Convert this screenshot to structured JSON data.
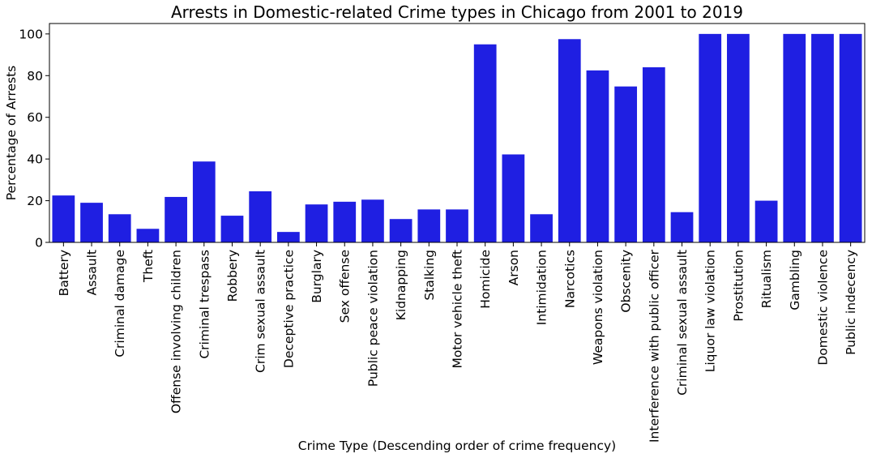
{
  "chart_data": {
    "type": "bar",
    "title": "Arrests in Domestic-related Crime types in Chicago from 2001 to 2019",
    "xlabel": "Crime Type (Descending order of crime frequency)",
    "ylabel": "Percentage of Arrests",
    "ylim": [
      0,
      105
    ],
    "yticks": [
      0,
      20,
      40,
      60,
      80,
      100
    ],
    "grid": false,
    "bar_color": "#1f1fe2",
    "categories": [
      "Battery",
      "Assault",
      "Criminal damage",
      "Theft",
      "Offense involving children",
      "Criminal trespass",
      "Robbery",
      "Crim sexual assault",
      "Deceptive practice",
      "Burglary",
      "Sex offense",
      "Public peace violation",
      "Kidnapping",
      "Stalking",
      "Motor vehicle theft",
      "Homicide",
      "Arson",
      "Intimidation",
      "Narcotics",
      "Weapons violation",
      "Obscenity",
      "Interference with public officer",
      "Criminal sexual assault",
      "Liquor law violation",
      "Prostitution",
      "Ritualism",
      "Gambling",
      "Domestic violence",
      "Public indecency"
    ],
    "values": [
      22.5,
      19.0,
      13.5,
      6.5,
      21.8,
      38.8,
      12.8,
      24.5,
      5.0,
      18.2,
      19.5,
      20.5,
      11.2,
      15.8,
      15.8,
      95.0,
      42.2,
      13.5,
      97.5,
      82.5,
      74.8,
      84.0,
      14.5,
      100,
      100,
      20.0,
      100,
      100,
      100
    ]
  }
}
